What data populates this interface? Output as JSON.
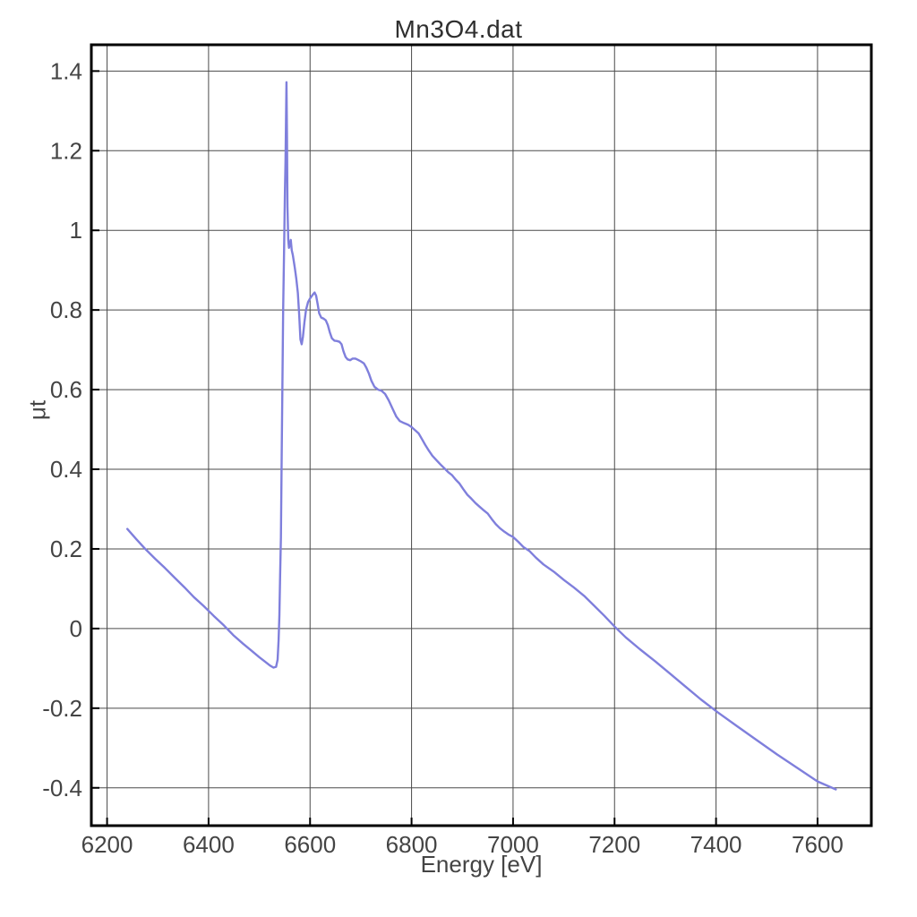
{
  "chart_data": {
    "type": "line",
    "title": "Mn3O4.dat",
    "xlabel": "Energy [eV]",
    "ylabel": "μt",
    "xlim": [
      6169,
      7706
    ],
    "ylim": [
      -0.495,
      1.466
    ],
    "x_ticks": [
      6200,
      6400,
      6600,
      6800,
      7000,
      7200,
      7400,
      7600
    ],
    "x_tick_labels": [
      "6200",
      "6400",
      "6600",
      "6800",
      "7000",
      "7200",
      "7400",
      "7600"
    ],
    "y_ticks": [
      -0.4,
      -0.2,
      0,
      0.2,
      0.4,
      0.6,
      0.8,
      1,
      1.2,
      1.4
    ],
    "y_tick_labels": [
      "-0.4",
      "-0.2",
      "0",
      "0.2",
      "0.4",
      "0.6",
      "0.8",
      "1",
      "1.2",
      "1.4"
    ],
    "grid": true,
    "legend": "none",
    "colors": {
      "line": "#7f7fdc",
      "grid": "#4a4a4a",
      "frame": "#000000",
      "text": "#444444"
    },
    "series": [
      {
        "name": "Mn3O4.dat",
        "points": [
          [
            6240,
            0.25
          ],
          [
            6258,
            0.224
          ],
          [
            6276,
            0.199
          ],
          [
            6295,
            0.175
          ],
          [
            6314,
            0.152
          ],
          [
            6333,
            0.128
          ],
          [
            6352,
            0.104
          ],
          [
            6371,
            0.079
          ],
          [
            6390,
            0.057
          ],
          [
            6410,
            0.032
          ],
          [
            6430,
            0.008
          ],
          [
            6450,
            -0.018
          ],
          [
            6468,
            -0.038
          ],
          [
            6484,
            -0.055
          ],
          [
            6500,
            -0.072
          ],
          [
            6512,
            -0.084
          ],
          [
            6521,
            -0.093
          ],
          [
            6528,
            -0.098
          ],
          [
            6533,
            -0.096
          ],
          [
            6536,
            -0.078
          ],
          [
            6538,
            -0.03
          ],
          [
            6539.5,
            0.034
          ],
          [
            6541,
            0.132
          ],
          [
            6542.5,
            0.23
          ],
          [
            6544,
            0.42
          ],
          [
            6545.5,
            0.62
          ],
          [
            6547,
            0.8
          ],
          [
            6549,
            0.96
          ],
          [
            6550.5,
            1.1
          ],
          [
            6551.5,
            1.17
          ],
          [
            6552.5,
            1.26
          ],
          [
            6553.5,
            1.372
          ],
          [
            6554.5,
            1.23
          ],
          [
            6555.5,
            1.06
          ],
          [
            6557,
            0.975
          ],
          [
            6558.5,
            0.956
          ],
          [
            6560.5,
            0.968
          ],
          [
            6562,
            0.976
          ],
          [
            6564,
            0.95
          ],
          [
            6566,
            0.938
          ],
          [
            6568,
            0.922
          ],
          [
            6570,
            0.906
          ],
          [
            6573,
            0.878
          ],
          [
            6576,
            0.843
          ],
          [
            6578.5,
            0.788
          ],
          [
            6581,
            0.726
          ],
          [
            6583.5,
            0.714
          ],
          [
            6586,
            0.733
          ],
          [
            6589,
            0.77
          ],
          [
            6592,
            0.8
          ],
          [
            6596,
            0.82
          ],
          [
            6600,
            0.829
          ],
          [
            6605,
            0.838
          ],
          [
            6609,
            0.844
          ],
          [
            6612,
            0.836
          ],
          [
            6615,
            0.815
          ],
          [
            6618,
            0.792
          ],
          [
            6622,
            0.781
          ],
          [
            6627,
            0.778
          ],
          [
            6631,
            0.774
          ],
          [
            6635,
            0.762
          ],
          [
            6639,
            0.744
          ],
          [
            6643,
            0.729
          ],
          [
            6648,
            0.723
          ],
          [
            6653,
            0.722
          ],
          [
            6658,
            0.72
          ],
          [
            6662,
            0.714
          ],
          [
            6666,
            0.696
          ],
          [
            6670,
            0.682
          ],
          [
            6674,
            0.676
          ],
          [
            6679,
            0.674
          ],
          [
            6684,
            0.678
          ],
          [
            6689,
            0.678
          ],
          [
            6694,
            0.675
          ],
          [
            6700,
            0.671
          ],
          [
            6706,
            0.666
          ],
          [
            6711,
            0.655
          ],
          [
            6716,
            0.64
          ],
          [
            6721,
            0.622
          ],
          [
            6727,
            0.607
          ],
          [
            6734,
            0.6
          ],
          [
            6741,
            0.597
          ],
          [
            6748,
            0.589
          ],
          [
            6755,
            0.573
          ],
          [
            6763,
            0.551
          ],
          [
            6770,
            0.532
          ],
          [
            6777,
            0.521
          ],
          [
            6785,
            0.516
          ],
          [
            6793,
            0.512
          ],
          [
            6800,
            0.506
          ],
          [
            6807,
            0.498
          ],
          [
            6814,
            0.49
          ],
          [
            6820,
            0.477
          ],
          [
            6827,
            0.461
          ],
          [
            6834,
            0.447
          ],
          [
            6841,
            0.434
          ],
          [
            6849,
            0.423
          ],
          [
            6857,
            0.412
          ],
          [
            6865,
            0.402
          ],
          [
            6873,
            0.392
          ],
          [
            6880,
            0.385
          ],
          [
            6887,
            0.374
          ],
          [
            6894,
            0.365
          ],
          [
            6902,
            0.35
          ],
          [
            6910,
            0.336
          ],
          [
            6918,
            0.326
          ],
          [
            6926,
            0.315
          ],
          [
            6934,
            0.306
          ],
          [
            6942,
            0.297
          ],
          [
            6950,
            0.289
          ],
          [
            6958,
            0.275
          ],
          [
            6966,
            0.262
          ],
          [
            6974,
            0.252
          ],
          [
            6983,
            0.243
          ],
          [
            6991,
            0.236
          ],
          [
            7000,
            0.23
          ],
          [
            7010,
            0.218
          ],
          [
            7020,
            0.205
          ],
          [
            7032,
            0.195
          ],
          [
            7045,
            0.178
          ],
          [
            7060,
            0.161
          ],
          [
            7081,
            0.142
          ],
          [
            7100,
            0.122
          ],
          [
            7120,
            0.103
          ],
          [
            7140,
            0.082
          ],
          [
            7160,
            0.057
          ],
          [
            7180,
            0.032
          ],
          [
            7200,
            0.005
          ],
          [
            7222,
            -0.022
          ],
          [
            7250,
            -0.052
          ],
          [
            7280,
            -0.082
          ],
          [
            7310,
            -0.114
          ],
          [
            7340,
            -0.146
          ],
          [
            7370,
            -0.178
          ],
          [
            7403,
            -0.21
          ],
          [
            7440,
            -0.244
          ],
          [
            7480,
            -0.28
          ],
          [
            7520,
            -0.316
          ],
          [
            7560,
            -0.35
          ],
          [
            7600,
            -0.384
          ],
          [
            7636,
            -0.404
          ]
        ]
      }
    ]
  }
}
